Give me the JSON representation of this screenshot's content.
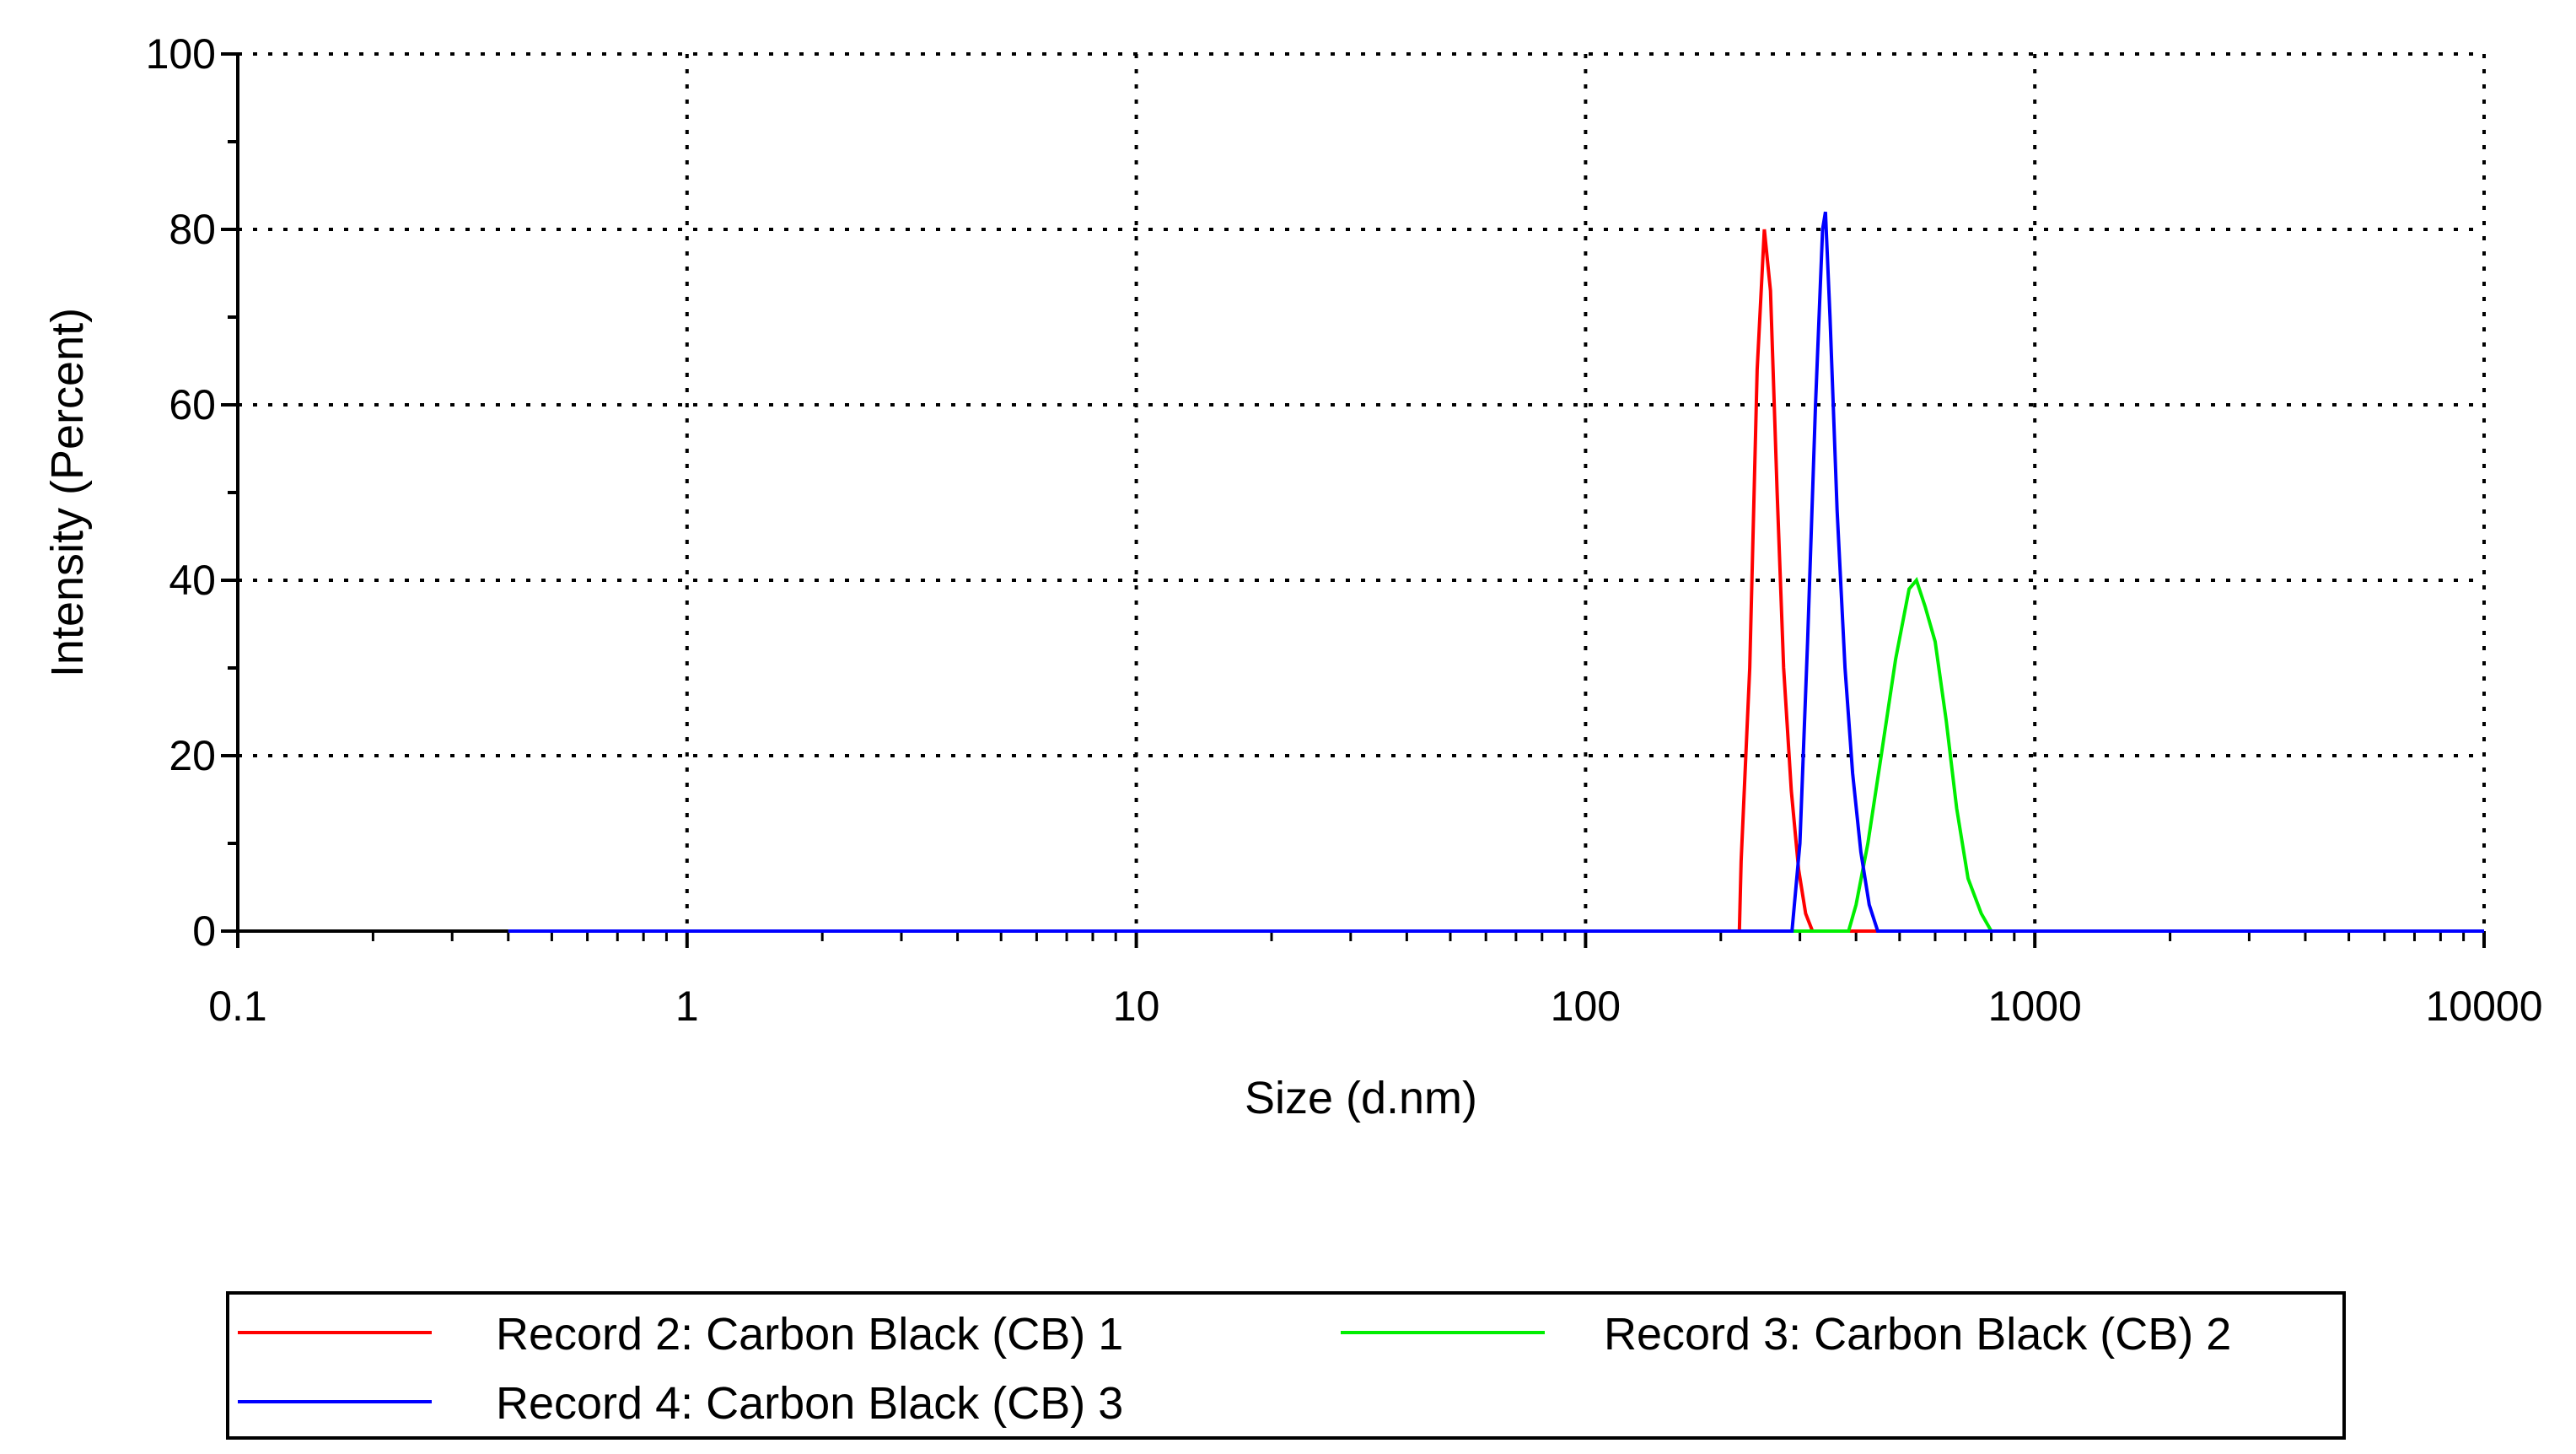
{
  "chart_data": {
    "type": "line",
    "title": "",
    "xlabel": "Size (d.nm)",
    "ylabel": "Intensity (Percent)",
    "x_scale": "log",
    "xlim": [
      0.1,
      10000
    ],
    "ylim": [
      0,
      100
    ],
    "x_ticks": [
      0.1,
      1,
      10,
      100,
      1000,
      10000
    ],
    "x_tick_labels": [
      "0.1",
      "1",
      "10",
      "100",
      "1000",
      "10000"
    ],
    "y_ticks": [
      0,
      20,
      40,
      60,
      80,
      100
    ],
    "y_tick_labels": [
      "0",
      "20",
      "40",
      "60",
      "80",
      "100"
    ],
    "grid": true,
    "legend_position": "bottom",
    "series": [
      {
        "name": "Record 2: Carbon Black (CB) 1",
        "color": "#ff0000",
        "x": [
          0.4,
          220,
          222,
          232,
          241,
          250,
          258,
          267,
          276,
          287,
          298,
          309,
          320,
          331,
          10000
        ],
        "y": [
          0,
          0,
          8,
          30,
          64,
          80,
          73,
          50,
          30,
          16,
          7,
          2,
          0,
          0,
          0
        ]
      },
      {
        "name": "Record 3: Carbon Black (CB) 2",
        "color": "#00ee00",
        "x": [
          0.4,
          385,
          400,
          425,
          455,
          490,
          525,
          545,
          570,
          600,
          635,
          670,
          710,
          760,
          800,
          10000
        ],
        "y": [
          0,
          0,
          3,
          10,
          20,
          31,
          39,
          40,
          37,
          33,
          24,
          14,
          6,
          2,
          0,
          0
        ]
      },
      {
        "name": "Record 4: Carbon Black (CB) 3",
        "color": "#0000ff",
        "x": [
          0.4,
          288,
          300,
          312,
          325,
          337,
          342,
          350,
          363,
          378,
          393,
          410,
          428,
          447,
          10000
        ],
        "y": [
          0,
          0,
          10,
          33,
          60,
          80,
          82,
          70,
          48,
          30,
          18,
          9,
          3,
          0,
          0
        ]
      }
    ]
  }
}
